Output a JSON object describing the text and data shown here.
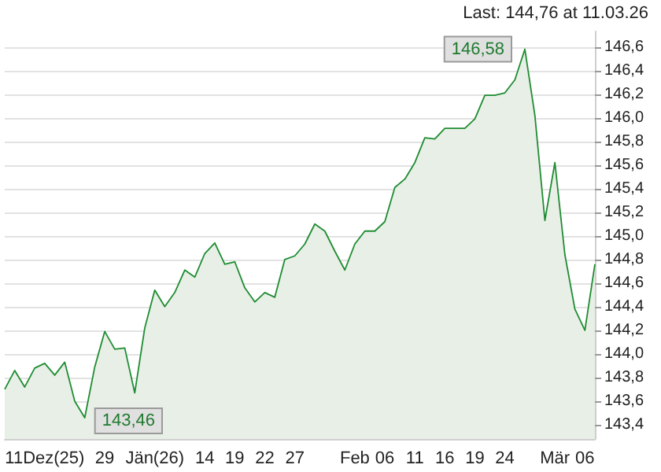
{
  "chart_data": {
    "type": "area",
    "categories": [
      null,
      null,
      null,
      null,
      "11Dez(25)",
      null,
      null,
      null,
      null,
      null,
      "29",
      null,
      null,
      null,
      null,
      "Jän(26)",
      null,
      null,
      null,
      null,
      "14",
      null,
      null,
      "19",
      null,
      null,
      "22",
      null,
      null,
      "27",
      null,
      null,
      null,
      null,
      null,
      "Feb",
      null,
      null,
      "06",
      null,
      null,
      "11",
      null,
      null,
      "16",
      null,
      null,
      "19",
      null,
      null,
      "24",
      null,
      null,
      null,
      null,
      "Mär",
      null,
      null,
      "06",
      null
    ],
    "series": [
      {
        "color": "#1e8c32",
        "values": [
          143.7,
          143.86,
          143.72,
          143.88,
          143.92,
          143.82,
          143.93,
          143.6,
          143.46,
          143.89,
          144.19,
          144.04,
          144.05,
          143.67,
          144.22,
          144.54,
          144.4,
          144.52,
          144.71,
          144.65,
          144.85,
          144.94,
          144.76,
          144.78,
          144.56,
          144.44,
          144.52,
          144.48,
          144.8,
          144.83,
          144.93,
          145.1,
          145.04,
          144.87,
          144.71,
          144.93,
          145.04,
          145.04,
          145.12,
          145.41,
          145.48,
          145.62,
          145.83,
          145.82,
          145.91,
          145.91,
          145.91,
          145.99,
          146.19,
          146.19,
          146.21,
          146.32,
          146.58,
          146.02,
          145.13,
          145.62,
          144.84,
          144.38,
          144.2,
          144.76
        ]
      }
    ],
    "ylim": [
      143.28,
      146.73
    ],
    "yticks": [
      {
        "value": 143.4,
        "label": "143,4"
      },
      {
        "value": 143.6,
        "label": "143,6"
      },
      {
        "value": 143.8,
        "label": "143,8"
      },
      {
        "value": 144.0,
        "label": "144,0"
      },
      {
        "value": 144.2,
        "label": "144,2"
      },
      {
        "value": 144.4,
        "label": "144,4"
      },
      {
        "value": 144.6,
        "label": "144,6"
      },
      {
        "value": 144.8,
        "label": "144,8"
      },
      {
        "value": 145.0,
        "label": "145,0"
      },
      {
        "value": 145.2,
        "label": "145,2"
      },
      {
        "value": 145.4,
        "label": "145,4"
      },
      {
        "value": 145.6,
        "label": "145,6"
      },
      {
        "value": 145.8,
        "label": "145,8"
      },
      {
        "value": 146.0,
        "label": "146,0"
      },
      {
        "value": 146.2,
        "label": "146,2"
      },
      {
        "value": 146.4,
        "label": "146,4"
      },
      {
        "value": 146.6,
        "label": "146,6"
      }
    ],
    "grid": "y",
    "annotations": [
      "Last: 144,76 at 11.03.26",
      {
        "text": "146,58",
        "y": 146.58
      },
      {
        "text": "143,46",
        "y": 143.46
      }
    ]
  }
}
